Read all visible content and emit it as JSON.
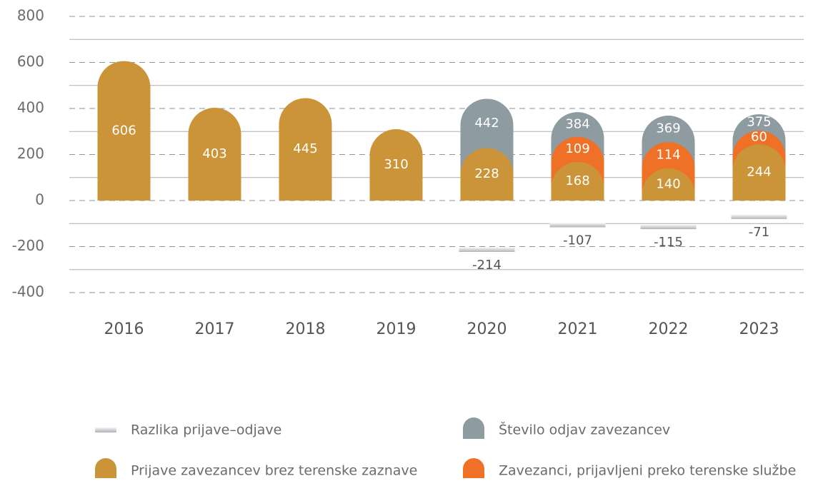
{
  "chart_data": {
    "type": "bar",
    "categories": [
      "2016",
      "2017",
      "2018",
      "2019",
      "2020",
      "2021",
      "2022",
      "2023"
    ],
    "series": [
      {
        "name": "Razlika prijave–odjave",
        "color": "#c4c9cd",
        "shape": "flat",
        "values": [
          null,
          null,
          null,
          null,
          -214,
          -107,
          -115,
          -71
        ]
      },
      {
        "name": "Število odjav zavezancev",
        "color": "#8e9ba1",
        "shape": "arch",
        "values": [
          null,
          null,
          null,
          null,
          442,
          384,
          369,
          375
        ]
      },
      {
        "name": "Prijave zavezancev brez terenske zaznave",
        "color": "#cc9438",
        "shape": "arch",
        "values": [
          606,
          403,
          445,
          310,
          228,
          168,
          140,
          244
        ]
      },
      {
        "name": "Zavezanci, prijavljeni preko terenske službe",
        "color": "#ee7127",
        "shape": "arch",
        "stacked": true,
        "values": [
          null,
          null,
          null,
          null,
          null,
          109,
          114,
          60
        ]
      }
    ],
    "ylim": [
      -400,
      800
    ],
    "yticks": [
      -400,
      -200,
      0,
      200,
      400,
      600,
      800
    ],
    "minor_yticks": [
      -300,
      -100,
      100,
      300,
      500,
      700
    ],
    "grid": true
  }
}
